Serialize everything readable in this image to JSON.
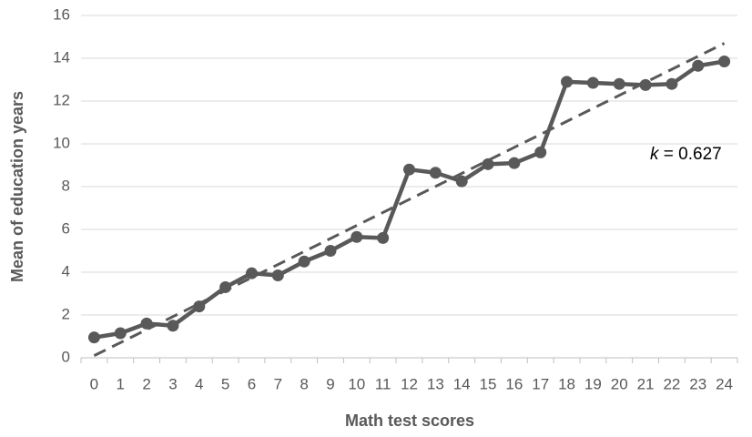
{
  "chart_data": {
    "type": "line",
    "x_label": "Math test scores",
    "y_label": "Mean of education years",
    "categories": [
      "0",
      "1",
      "2",
      "3",
      "4",
      "5",
      "6",
      "7",
      "8",
      "9",
      "10",
      "11",
      "12",
      "13",
      "14",
      "15",
      "16",
      "17",
      "18",
      "19",
      "20",
      "21",
      "22",
      "23",
      "24"
    ],
    "series": [
      {
        "color": "#595959",
        "values": [
          0.95,
          1.15,
          1.6,
          1.5,
          2.4,
          3.3,
          3.95,
          3.85,
          4.5,
          5.0,
          5.65,
          5.6,
          8.8,
          8.65,
          8.25,
          9.05,
          9.1,
          9.6,
          12.9,
          12.85,
          12.8,
          12.75,
          12.8,
          13.65,
          13.85
        ]
      }
    ],
    "trendline": {
      "color": "#595959",
      "start": 0.1,
      "end": 14.7
    },
    "annotation_symbol": "k",
    "annotation_text": " = 0.627",
    "ylim": [
      0,
      16
    ],
    "yticks": [
      0,
      2,
      4,
      6,
      8,
      10,
      12,
      14,
      16
    ],
    "grid": true
  }
}
